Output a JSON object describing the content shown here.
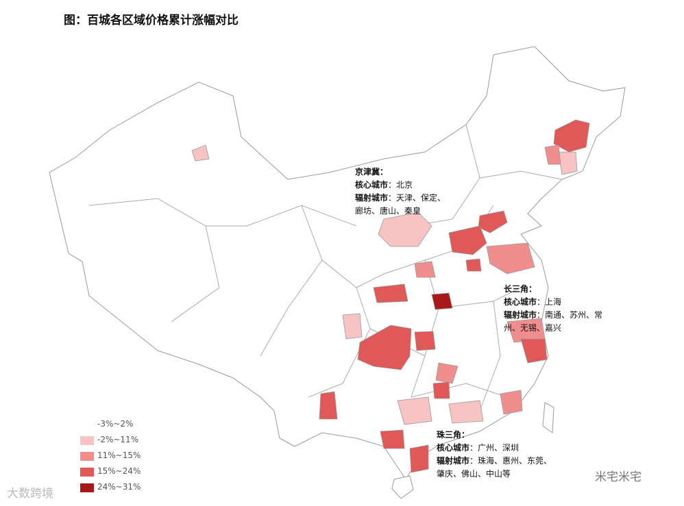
{
  "header": {
    "title": "图：百城各区域价格累计涨幅对比"
  },
  "legend": {
    "items": [
      {
        "label": "-3%~2%",
        "color": "#ffffff"
      },
      {
        "label": "-2%~11%",
        "color": "#f7c3c3"
      },
      {
        "label": "11%~15%",
        "color": "#f08e8e"
      },
      {
        "label": "15%~24%",
        "color": "#e05858"
      },
      {
        "label": "24%~31%",
        "color": "#a81a1a"
      }
    ]
  },
  "annotations": [
    {
      "title": "京津冀：",
      "core_label": "核心城市",
      "core_cities": "：北京",
      "radiating_label": "辐射城市",
      "radiating_cities": "：天津、保定、廊坊、唐山、秦皇"
    },
    {
      "title": "长三角：",
      "core_label": "核心城市",
      "core_cities": "：上海",
      "radiating_label": "辐射城市",
      "radiating_cities": "：南通、苏州、常州、无锡、嘉兴"
    },
    {
      "title": "珠三角：",
      "core_label": "核心城市",
      "core_cities": "：广州、深圳",
      "radiating_label": "辐射城市",
      "radiating_cities": "：珠海、惠州、东莞、肇庆、佛山、中山等"
    }
  ],
  "watermarks": [
    "大数跨境",
    "米宅米宅"
  ]
}
